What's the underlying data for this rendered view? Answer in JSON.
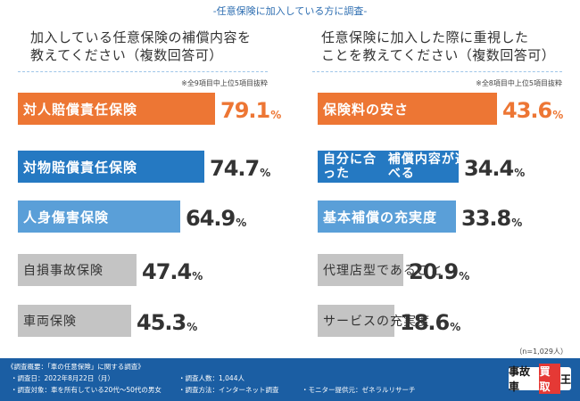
{
  "header": {
    "title": "-任意保険に加入している方に調査-"
  },
  "left": {
    "question_line1": "加入している任意保険の補償内容を",
    "question_line2": "教えてください（複数回答可）",
    "note": "※全9項目中上位5項目抜粋"
  },
  "right": {
    "question_line1": "任意保険に加入した際に重視した",
    "question_line2": "ことを教えてください（複数回答可）",
    "note": "※全8項目中上位5項目抜粋"
  },
  "colors": {
    "top": "#ed7634",
    "blue": "#2579c2",
    "light_blue": "#5a9fd8",
    "gray": "#c4c4c4"
  },
  "chart_data": [
    {
      "type": "bar",
      "orientation": "horizontal",
      "title": "加入している任意保険の補償内容を教えてください（複数回答可）",
      "categories": [
        "対人賠償責任保険",
        "対物賠償責任保険",
        "人身傷害保険",
        "自損事故保険",
        "車両保険"
      ],
      "values": [
        79.1,
        74.7,
        64.9,
        47.4,
        45.3
      ],
      "unit": "%",
      "xlim": [
        0,
        100
      ]
    },
    {
      "type": "bar",
      "orientation": "horizontal",
      "title": "任意保険に加入した際に重視したことを教えてください（複数回答可）",
      "categories": [
        "保険料の安さ",
        "自分に合った\n補償内容が選べる",
        "基本補償の充実度",
        "代理店型であること",
        "サービスの充実度"
      ],
      "values": [
        43.6,
        34.4,
        33.8,
        20.9,
        18.6
      ],
      "unit": "%",
      "xlim": [
        0,
        50
      ]
    }
  ],
  "n_note": "（n=1,029人）",
  "footer": {
    "line1": "《調査概要：「車の任意保険」に関する調査》",
    "date": "・調査日：2022年8月22日（月）",
    "people": "・調査人数：1,044人",
    "target": "・調査対象：車を所有している20代～50代の男女",
    "method": "・調査方法：インターネット調査",
    "provider": "・モニター提供元：ゼネラルリサーチ",
    "logo_a": "事故車",
    "logo_b": "買取",
    "logo_c": "王"
  }
}
